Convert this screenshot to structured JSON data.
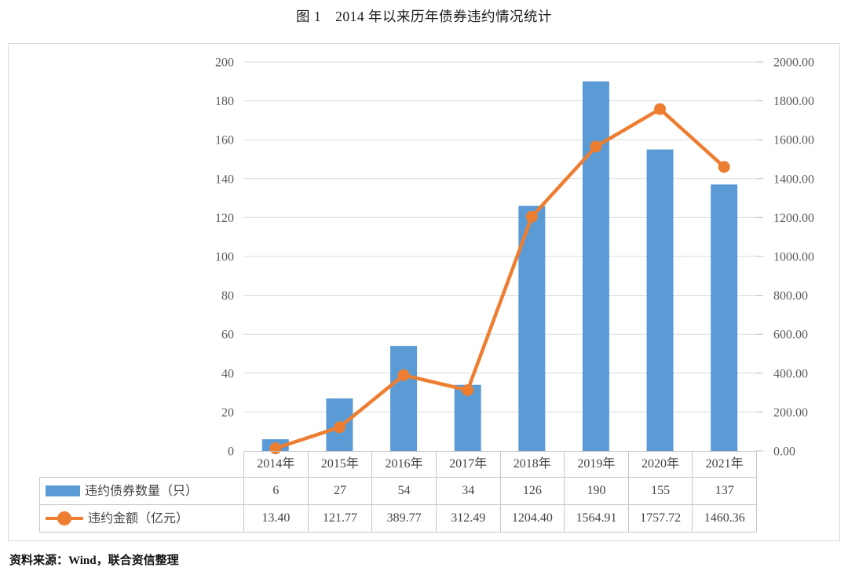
{
  "title": "图 1　2014 年以来历年债券违约情况统计",
  "source": "资料来源：Wind，联合资信整理",
  "colors": {
    "bar": "#5B9BD5",
    "line": "#ED7D31",
    "grid": "#DCDCDC",
    "tick": "#BFBFBF",
    "axis_text": "#595959",
    "table_border": "#C6C6C6",
    "frame_border": "#D9D9D9",
    "table_text": "#444444"
  },
  "chart_data": {
    "type": "combo-bar-line",
    "title": "图 1　2014 年以来历年债券违约情况统计",
    "categories": [
      "2014年",
      "2015年",
      "2016年",
      "2017年",
      "2018年",
      "2019年",
      "2020年",
      "2021年"
    ],
    "series": [
      {
        "name": "违约债券数量（只）",
        "type": "bar",
        "axis": "left",
        "color": "#5B9BD5",
        "values": [
          6,
          27,
          54,
          34,
          126,
          190,
          155,
          137
        ],
        "display": [
          "6",
          "27",
          "54",
          "34",
          "126",
          "190",
          "155",
          "137"
        ]
      },
      {
        "name": "违约金额（亿元）",
        "type": "line",
        "axis": "right",
        "color": "#ED7D31",
        "values": [
          13.4,
          121.77,
          389.77,
          312.49,
          1204.4,
          1564.91,
          1757.72,
          1460.36
        ],
        "display": [
          "13.40",
          "121.77",
          "389.77",
          "312.49",
          "1204.40",
          "1564.91",
          "1757.72",
          "1460.36"
        ]
      }
    ],
    "left_axis": {
      "min": 0,
      "max": 200,
      "step": 20,
      "tick_labels": [
        "0",
        "20",
        "40",
        "60",
        "80",
        "100",
        "120",
        "140",
        "160",
        "180",
        "200"
      ]
    },
    "right_axis": {
      "min": 0,
      "max": 2000,
      "step": 200,
      "tick_labels": [
        "0.00",
        "200.00",
        "400.00",
        "600.00",
        "800.00",
        "1000.00",
        "1200.00",
        "1400.00",
        "1600.00",
        "1800.00",
        "2000.00"
      ]
    },
    "grid": true,
    "legend_position": "table-left"
  }
}
